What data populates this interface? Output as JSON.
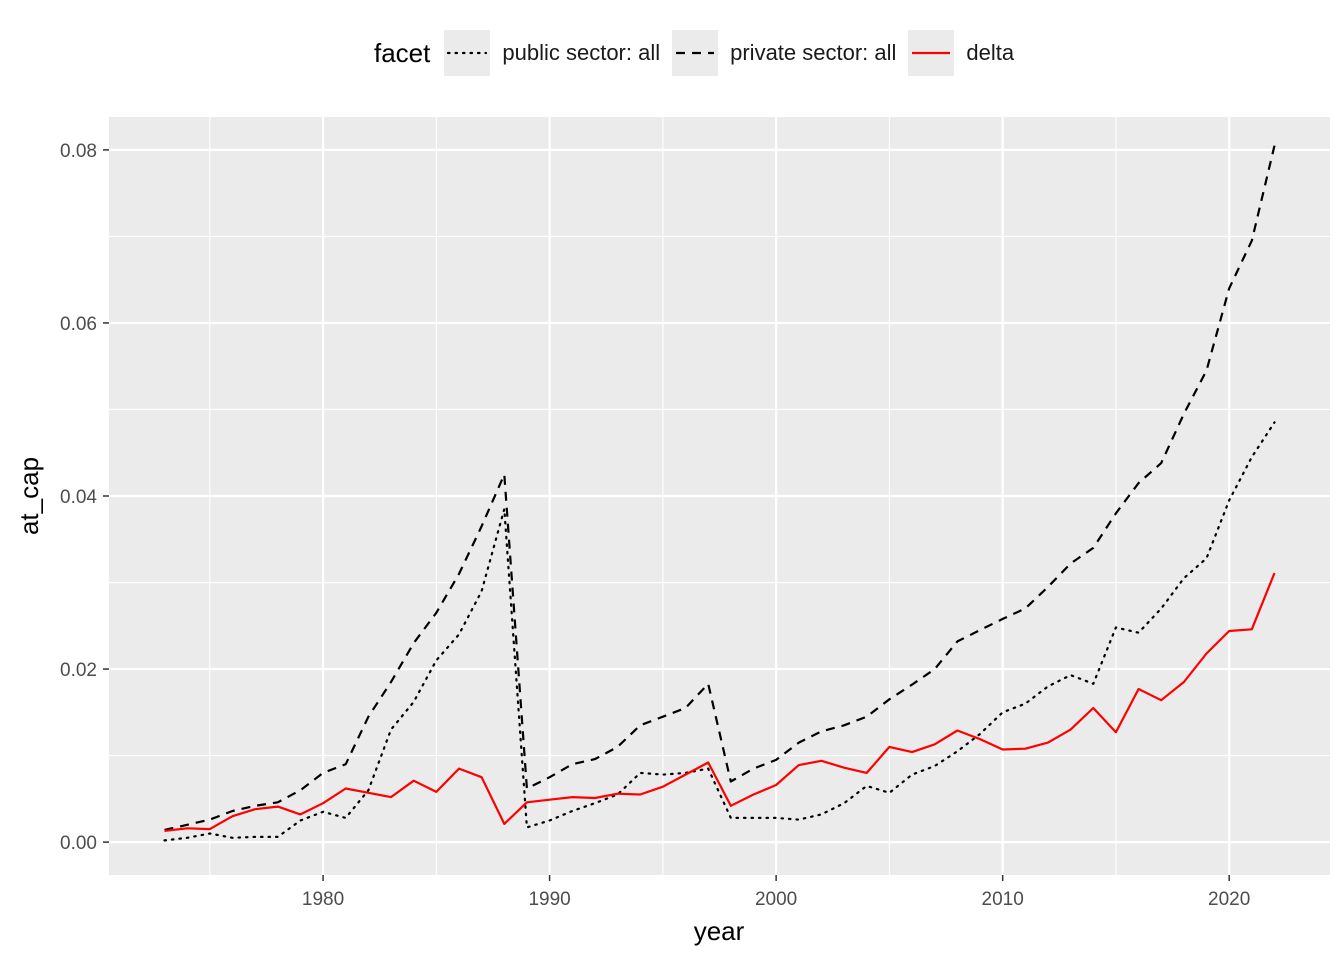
{
  "legend": {
    "title": "facet",
    "items": [
      {
        "label": "public sector: all",
        "style": "dotted",
        "color": "#000000"
      },
      {
        "label": "private sector: all",
        "style": "dashed",
        "color": "#000000"
      },
      {
        "label": "delta",
        "style": "solid",
        "color": "#ff0000"
      }
    ]
  },
  "chart_data": {
    "type": "line",
    "xlabel": "year",
    "ylabel": "at_cap",
    "xlim": [
      1971.7,
      1975.0
    ],
    "ylim": [
      -0.0038,
      0.0838
    ],
    "x_ticks": [
      1980,
      1990,
      2000,
      2010,
      2020
    ],
    "y_ticks": [
      0.0,
      0.02,
      0.04,
      0.06,
      0.08
    ],
    "x_tick_labels": [
      "1980",
      "1990",
      "2000",
      "2010",
      "2020"
    ],
    "y_tick_labels": [
      "0.00",
      "0.02",
      "0.04",
      "0.06",
      "0.08"
    ],
    "grid": true,
    "legend_position": "top",
    "background": "#ebebeb",
    "x": [
      1973,
      1974,
      1975,
      1976,
      1977,
      1978,
      1979,
      1980,
      1981,
      1982,
      1983,
      1984,
      1985,
      1986,
      1987,
      1988,
      1989,
      1990,
      1991,
      1992,
      1993,
      1994,
      1995,
      1996,
      1997,
      1998,
      1999,
      2000,
      2001,
      2002,
      2003,
      2004,
      2005,
      2006,
      2007,
      2008,
      2009,
      2010,
      2011,
      2012,
      2013,
      2014,
      2015,
      2016,
      2017,
      2018,
      2019,
      2020,
      2021,
      2022
    ],
    "series": [
      {
        "name": "public sector: all",
        "style": "dotted",
        "color": "#000000",
        "values": [
          0.0002,
          0.0005,
          0.001,
          0.0005,
          0.0006,
          0.0006,
          0.0025,
          0.0035,
          0.0028,
          0.006,
          0.013,
          0.0162,
          0.021,
          0.024,
          0.029,
          0.0385,
          0.0017,
          0.0025,
          0.0036,
          0.0045,
          0.0055,
          0.008,
          0.0078,
          0.008,
          0.0085,
          0.0028,
          0.0028,
          0.0028,
          0.0026,
          0.0032,
          0.0045,
          0.0065,
          0.0057,
          0.0078,
          0.0088,
          0.0105,
          0.0125,
          0.015,
          0.016,
          0.018,
          0.0193,
          0.0183,
          0.0248,
          0.0242,
          0.027,
          0.0305,
          0.0328,
          0.0395,
          0.0445,
          0.0485
        ]
      },
      {
        "name": "private sector: all",
        "style": "dashed",
        "color": "#000000",
        "values": [
          0.0014,
          0.002,
          0.0026,
          0.0036,
          0.0042,
          0.0046,
          0.006,
          0.008,
          0.009,
          0.0145,
          0.0185,
          0.023,
          0.0265,
          0.031,
          0.0365,
          0.0425,
          0.0062,
          0.0075,
          0.009,
          0.0096,
          0.011,
          0.0135,
          0.0145,
          0.0155,
          0.0183,
          0.007,
          0.0085,
          0.0095,
          0.0115,
          0.0128,
          0.0135,
          0.0145,
          0.0165,
          0.0182,
          0.02,
          0.0232,
          0.0245,
          0.0258,
          0.027,
          0.0295,
          0.0322,
          0.034,
          0.038,
          0.0415,
          0.0438,
          0.0495,
          0.0545,
          0.064,
          0.0695,
          0.0805
        ]
      },
      {
        "name": "delta",
        "style": "solid",
        "color": "#ff0000",
        "values": [
          0.0013,
          0.0016,
          0.0015,
          0.003,
          0.0038,
          0.0041,
          0.0032,
          0.0045,
          0.0062,
          0.0057,
          0.0052,
          0.0071,
          0.0058,
          0.0085,
          0.0075,
          0.0021,
          0.0046,
          0.0049,
          0.0052,
          0.0051,
          0.0056,
          0.0055,
          0.0064,
          0.0078,
          0.0092,
          0.0042,
          0.0055,
          0.0066,
          0.0089,
          0.0094,
          0.0086,
          0.008,
          0.011,
          0.0104,
          0.0113,
          0.0129,
          0.0119,
          0.0107,
          0.0108,
          0.0115,
          0.013,
          0.0155,
          0.0127,
          0.0177,
          0.0164,
          0.0185,
          0.0218,
          0.0244,
          0.0246,
          0.0311
        ]
      }
    ]
  }
}
